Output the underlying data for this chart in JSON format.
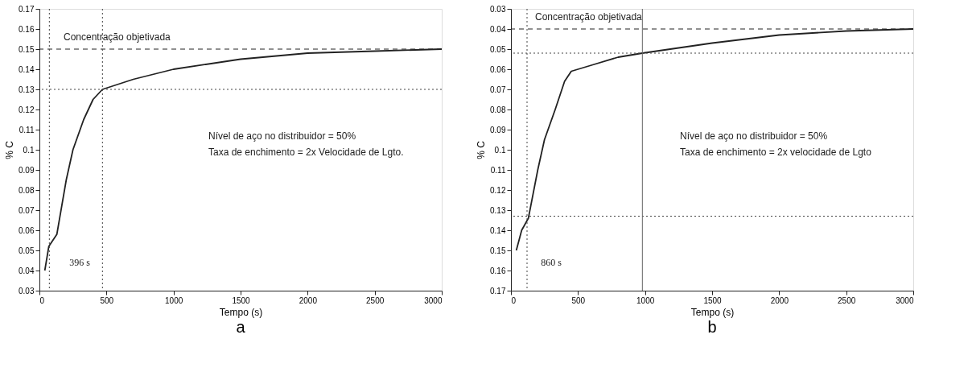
{
  "chart_data": [
    {
      "type": "line",
      "title": "a",
      "xlabel": "Tempo (s)",
      "ylabel": "% C",
      "xlim": [
        0,
        3000
      ],
      "ylim": [
        0.03,
        0.17
      ],
      "xticks": [
        0,
        500,
        1000,
        1500,
        2000,
        2500,
        3000
      ],
      "yticks": [
        0.03,
        0.04,
        0.05,
        0.06,
        0.07,
        0.08,
        0.09,
        0.1,
        0.11,
        0.12,
        0.13,
        0.14,
        0.15,
        0.16,
        0.17
      ],
      "grid": false,
      "line_style": "solid",
      "series": [
        {
          "color": "#222222",
          "x": [
            40,
            70,
            130,
            200,
            250,
            330,
            400,
            470,
            700,
            1000,
            1500,
            2000,
            2500,
            3000
          ],
          "values": [
            0.04,
            0.052,
            0.058,
            0.085,
            0.1,
            0.115,
            0.125,
            0.13,
            0.135,
            0.14,
            0.145,
            0.148,
            0.149,
            0.15
          ]
        }
      ],
      "ref_lines": [
        {
          "axis": "y",
          "value": 0.15,
          "label": "Concentração objetivada",
          "line_style": "dashed",
          "color": "#222222"
        },
        {
          "axis": "y",
          "value": 0.13,
          "label": null,
          "line_style": "dotted",
          "color": "#444444"
        },
        {
          "axis": "x",
          "value": 74,
          "label": null,
          "line_style": "dotted",
          "color": "#444444"
        },
        {
          "axis": "x",
          "value": 470,
          "label": null,
          "line_style": "dotted",
          "color": "#444444"
        }
      ],
      "annotations": [
        "396 s",
        "Nível de aço no distribuidor = 50%",
        "Taxa de enchimento = 2x Velocidade de Lgto."
      ]
    },
    {
      "type": "line",
      "title": "b",
      "xlabel": "Tempo (s)",
      "ylabel": "% C",
      "xlim": [
        0,
        3000
      ],
      "ylim": [
        0.17,
        0.03
      ],
      "xticks": [
        0,
        500,
        1000,
        1500,
        2000,
        2500,
        3000
      ],
      "yticks": [
        0.03,
        0.04,
        0.05,
        0.06,
        0.07,
        0.08,
        0.09,
        0.1,
        0.11,
        0.12,
        0.13,
        0.14,
        0.15,
        0.16,
        0.17
      ],
      "grid": false,
      "line_style": "solid",
      "series": [
        {
          "color": "#222222",
          "x": [
            40,
            80,
            130,
            200,
            250,
            330,
            400,
            450,
            600,
            800,
            980,
            1500,
            2000,
            2500,
            3000
          ],
          "values": [
            0.15,
            0.14,
            0.134,
            0.11,
            0.095,
            0.08,
            0.066,
            0.061,
            0.058,
            0.054,
            0.052,
            0.047,
            0.043,
            0.041,
            0.04
          ]
        }
      ],
      "ref_lines": [
        {
          "axis": "y",
          "value": 0.04,
          "label": "Concentração objetivada",
          "line_style": "dashed",
          "color": "#222222"
        },
        {
          "axis": "y",
          "value": 0.052,
          "label": null,
          "line_style": "dotted",
          "color": "#444444"
        },
        {
          "axis": "y",
          "value": 0.133,
          "label": null,
          "line_style": "dotted",
          "color": "#444444"
        },
        {
          "axis": "x",
          "value": 120,
          "label": null,
          "line_style": "dotted",
          "color": "#444444"
        },
        {
          "axis": "x",
          "value": 980,
          "label": null,
          "line_style": "solid",
          "color": "#666666"
        }
      ],
      "annotations": [
        "860 s",
        "Nível de aço no distribuidor = 50%",
        "Taxa de enchimento = 2x velocidade de Lgto"
      ]
    }
  ]
}
